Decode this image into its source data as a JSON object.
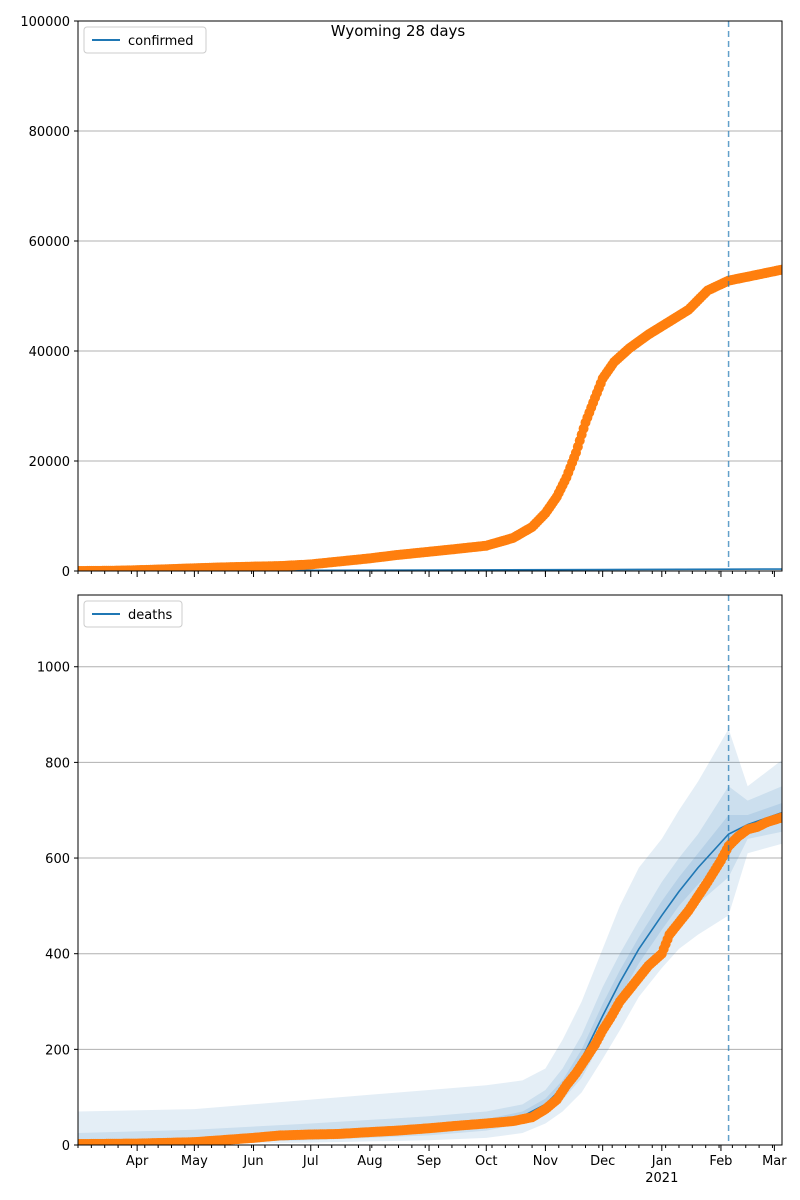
{
  "colors": {
    "model_line": "#1f77b4",
    "observed": "#ff7f0e",
    "band": "#1f77b4",
    "grid": "#b0b0b0",
    "vline": "#1f77b4"
  },
  "chart_data": [
    {
      "type": "line",
      "title": "Wyoming 28 days",
      "legend": {
        "label": "confirmed",
        "placement": "top-left"
      },
      "x_type": "date",
      "xlim": [
        "2020-03-01",
        "2021-03-05"
      ],
      "ylim": [
        0,
        100000
      ],
      "yticks": [
        0,
        20000,
        40000,
        60000,
        80000,
        100000
      ],
      "ytick_labels": [
        "0",
        "20000",
        "40000",
        "60000",
        "80000",
        "100000"
      ],
      "grid": "y",
      "forecast_start": "2021-02-05",
      "model_line": {
        "dates": [
          "2020-03-01",
          "2020-06-01",
          "2020-09-01",
          "2020-12-01",
          "2021-02-05",
          "2021-03-05"
        ],
        "values": [
          0,
          100,
          180,
          260,
          330,
          360
        ]
      },
      "observed": {
        "dates": [
          "2020-03-01",
          "2020-03-20",
          "2020-04-01",
          "2020-04-15",
          "2020-05-01",
          "2020-05-15",
          "2020-06-01",
          "2020-06-15",
          "2020-07-01",
          "2020-07-15",
          "2020-08-01",
          "2020-08-15",
          "2020-09-01",
          "2020-09-15",
          "2020-10-01",
          "2020-10-15",
          "2020-10-25",
          "2020-11-01",
          "2020-11-07",
          "2020-11-12",
          "2020-11-17",
          "2020-11-22",
          "2020-11-27",
          "2020-12-01",
          "2020-12-07",
          "2020-12-15",
          "2020-12-25",
          "2021-01-01",
          "2021-01-15",
          "2021-01-25",
          "2021-02-05",
          "2021-02-15",
          "2021-03-05"
        ],
        "values": [
          0,
          50,
          150,
          300,
          500,
          650,
          800,
          900,
          1200,
          1700,
          2300,
          2900,
          3500,
          4000,
          4600,
          6000,
          8000,
          10500,
          13500,
          17000,
          21500,
          27000,
          31500,
          35000,
          38000,
          40500,
          43000,
          44500,
          47500,
          51000,
          52800,
          53500,
          54800
        ]
      }
    },
    {
      "type": "line",
      "legend": {
        "label": "deaths",
        "placement": "top-left"
      },
      "x_type": "date",
      "xlim": [
        "2020-03-01",
        "2021-03-05"
      ],
      "ylim": [
        0,
        1150
      ],
      "yticks": [
        0,
        200,
        400,
        600,
        800,
        1000
      ],
      "ytick_labels": [
        "0",
        "200",
        "400",
        "600",
        "800",
        "1000"
      ],
      "grid": "y",
      "forecast_start": "2021-02-05",
      "xticks": [
        {
          "date": "2020-04-01",
          "label": "Apr"
        },
        {
          "date": "2020-05-01",
          "label": "May"
        },
        {
          "date": "2020-06-01",
          "label": "Jun"
        },
        {
          "date": "2020-07-01",
          "label": "Jul"
        },
        {
          "date": "2020-08-01",
          "label": "Aug"
        },
        {
          "date": "2020-09-01",
          "label": "Sep"
        },
        {
          "date": "2020-10-01",
          "label": "Oct"
        },
        {
          "date": "2020-11-01",
          "label": "Nov"
        },
        {
          "date": "2020-12-01",
          "label": "Dec"
        },
        {
          "date": "2021-01-01",
          "label": "Jan"
        },
        {
          "date": "2021-02-01",
          "label": "Feb"
        },
        {
          "date": "2021-03-01",
          "label": "Mar"
        }
      ],
      "year_label": {
        "date": "2021-01-01",
        "label": "2021"
      },
      "model_line": {
        "dates": [
          "2020-03-01",
          "2020-05-01",
          "2020-07-01",
          "2020-09-01",
          "2020-10-01",
          "2020-10-20",
          "2020-11-01",
          "2020-11-10",
          "2020-11-20",
          "2020-12-01",
          "2020-12-10",
          "2020-12-20",
          "2021-01-01",
          "2021-01-10",
          "2021-01-20",
          "2021-02-05",
          "2021-02-15",
          "2021-03-05"
        ],
        "values": [
          2,
          10,
          20,
          35,
          45,
          60,
          85,
          120,
          180,
          270,
          340,
          410,
          480,
          530,
          580,
          650,
          670,
          695
        ]
      },
      "bands": [
        {
          "dates": [
            "2020-03-01",
            "2020-05-01",
            "2020-07-01",
            "2020-09-01",
            "2020-10-01",
            "2020-10-20",
            "2020-11-01",
            "2020-11-10",
            "2020-11-20",
            "2020-12-01",
            "2020-12-10",
            "2020-12-20",
            "2021-01-01",
            "2021-01-10",
            "2021-01-20",
            "2021-02-05",
            "2021-02-15",
            "2021-03-05"
          ],
          "lower": [
            0,
            2,
            5,
            10,
            15,
            25,
            45,
            70,
            110,
            180,
            240,
            310,
            370,
            410,
            440,
            480,
            610,
            630
          ],
          "upper": [
            70,
            75,
            95,
            115,
            125,
            135,
            160,
            220,
            300,
            410,
            500,
            580,
            640,
            700,
            760,
            870,
            750,
            805
          ]
        },
        {
          "dates": [
            "2020-03-01",
            "2020-05-01",
            "2020-07-01",
            "2020-09-01",
            "2020-10-01",
            "2020-10-20",
            "2020-11-01",
            "2020-11-10",
            "2020-11-20",
            "2020-12-01",
            "2020-12-10",
            "2020-12-20",
            "2021-01-01",
            "2021-01-10",
            "2021-01-20",
            "2021-02-05",
            "2021-02-15",
            "2021-03-05"
          ],
          "lower": [
            0,
            5,
            10,
            20,
            30,
            45,
            65,
            95,
            140,
            220,
            285,
            355,
            420,
            465,
            505,
            560,
            640,
            655
          ],
          "upper": [
            25,
            32,
            45,
            60,
            70,
            85,
            115,
            160,
            230,
            330,
            400,
            470,
            550,
            600,
            650,
            750,
            720,
            750
          ]
        },
        {
          "dates": [
            "2020-03-01",
            "2020-05-01",
            "2020-07-01",
            "2020-09-01",
            "2020-10-01",
            "2020-10-20",
            "2020-11-01",
            "2020-11-10",
            "2020-11-20",
            "2020-12-01",
            "2020-12-10",
            "2020-12-20",
            "2021-01-01",
            "2021-01-10",
            "2021-01-20",
            "2021-02-05",
            "2021-02-15",
            "2021-03-05"
          ],
          "lower": [
            0,
            7,
            15,
            28,
            38,
            52,
            75,
            108,
            160,
            245,
            310,
            380,
            450,
            500,
            545,
            610,
            655,
            675
          ],
          "upper": [
            8,
            15,
            27,
            44,
            54,
            70,
            97,
            135,
            200,
            295,
            365,
            435,
            510,
            560,
            610,
            690,
            690,
            715
          ]
        }
      ],
      "observed": {
        "dates": [
          "2020-03-01",
          "2020-04-01",
          "2020-05-01",
          "2020-05-15",
          "2020-06-01",
          "2020-06-15",
          "2020-07-01",
          "2020-07-15",
          "2020-08-01",
          "2020-08-15",
          "2020-09-01",
          "2020-09-15",
          "2020-10-01",
          "2020-10-15",
          "2020-10-25",
          "2020-11-01",
          "2020-11-07",
          "2020-11-12",
          "2020-11-17",
          "2020-11-22",
          "2020-11-27",
          "2020-12-01",
          "2020-12-05",
          "2020-12-10",
          "2020-12-15",
          "2020-12-20",
          "2020-12-25",
          "2021-01-01",
          "2021-01-05",
          "2021-01-10",
          "2021-01-15",
          "2021-01-20",
          "2021-01-25",
          "2021-02-01",
          "2021-02-05",
          "2021-02-10",
          "2021-02-15",
          "2021-02-20",
          "2021-02-25",
          "2021-03-05"
        ],
        "values": [
          2,
          3,
          6,
          10,
          15,
          20,
          22,
          23,
          27,
          30,
          35,
          40,
          45,
          50,
          58,
          75,
          95,
          125,
          150,
          180,
          210,
          240,
          265,
          300,
          325,
          350,
          375,
          400,
          440,
          465,
          490,
          520,
          550,
          595,
          625,
          645,
          660,
          665,
          675,
          685
        ]
      }
    }
  ]
}
